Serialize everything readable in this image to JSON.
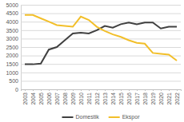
{
  "chart_data": {
    "type": "line",
    "categories": [
      "2003",
      "2004",
      "2005",
      "2006",
      "2007",
      "2008",
      "2009",
      "2010",
      "2011",
      "2012",
      "2013",
      "2014",
      "2015",
      "2016",
      "2017",
      "2018",
      "2019",
      "2020",
      "2021",
      "2022"
    ],
    "series": [
      {
        "name": "Domestik",
        "color": "#404040",
        "values": [
          1480,
          1480,
          1520,
          2350,
          2500,
          2900,
          3300,
          3350,
          3300,
          3500,
          3750,
          3650,
          3850,
          3950,
          3850,
          3950,
          3950,
          3600,
          3700,
          3700
        ]
      },
      {
        "name": "Ekspor",
        "color": "#f2bf2a",
        "values": [
          4400,
          4400,
          4200,
          4000,
          3800,
          3750,
          3700,
          4300,
          4100,
          3700,
          3450,
          3250,
          3100,
          2900,
          2750,
          2700,
          2150,
          2100,
          2050,
          1700
        ]
      }
    ],
    "ylim": [
      0,
      5000
    ],
    "yticks": [
      0,
      500,
      1000,
      1500,
      2000,
      2500,
      3000,
      3500,
      4000,
      4500,
      5000
    ],
    "grid": true,
    "legend": "bottom"
  }
}
